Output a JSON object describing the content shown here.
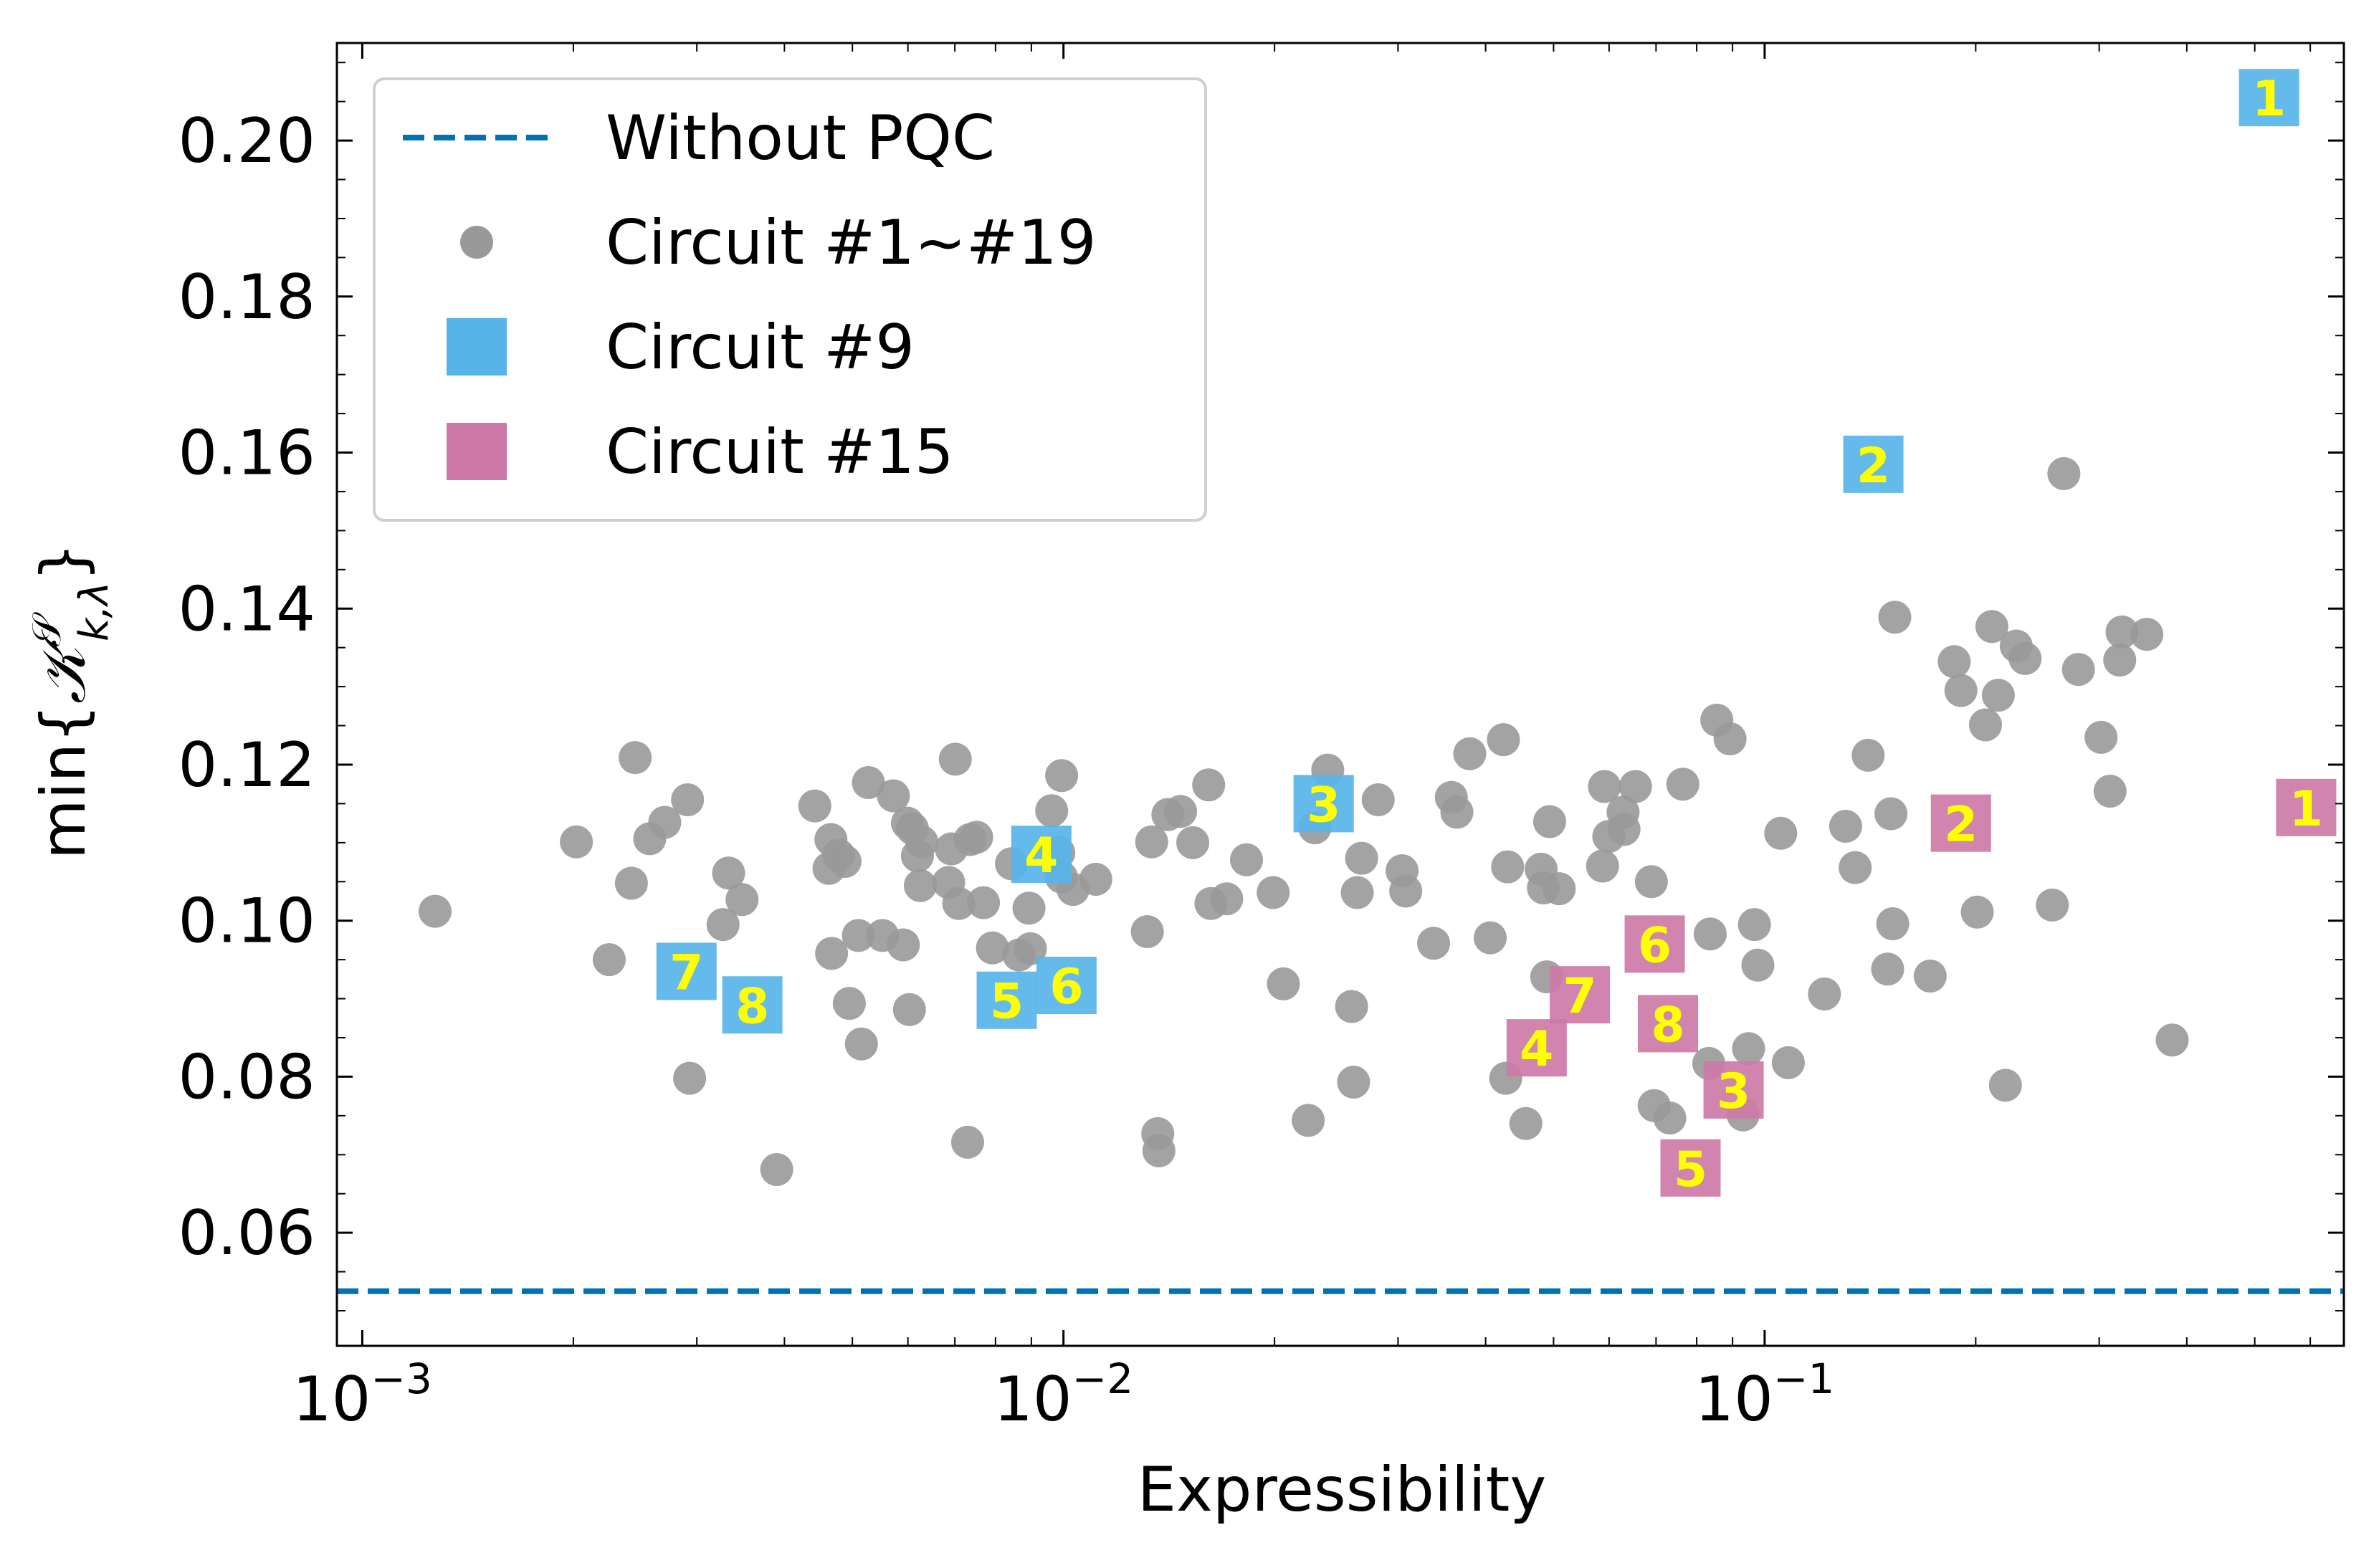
{
  "chart_data": {
    "type": "scatter",
    "xlabel": "Expressibility",
    "ylabel_prefix": "min{",
    "ylabel_symbol": "𝒦",
    "ylabel_sup": "𝒮",
    "ylabel_sub": "k,λ",
    "ylabel_suffix": "}",
    "xscale": "log",
    "xlim": [
      0.00092,
      0.67
    ],
    "ylim": [
      0.0455,
      0.2125
    ],
    "x_ticks": [
      {
        "value": 0.001,
        "base": "10",
        "exp": "−3"
      },
      {
        "value": 0.01,
        "base": "10",
        "exp": "−2"
      },
      {
        "value": 0.1,
        "base": "10",
        "exp": "−1"
      }
    ],
    "y_ticks": [
      {
        "value": 0.06,
        "label": "0.06"
      },
      {
        "value": 0.08,
        "label": "0.08"
      },
      {
        "value": 0.1,
        "label": "0.10"
      },
      {
        "value": 0.12,
        "label": "0.12"
      },
      {
        "value": 0.14,
        "label": "0.14"
      },
      {
        "value": 0.16,
        "label": "0.16"
      },
      {
        "value": 0.18,
        "label": "0.18"
      },
      {
        "value": 0.2,
        "label": "0.20"
      }
    ],
    "legend_position": "top-left",
    "legend": [
      {
        "label": "Without PQC",
        "kind": "dashed-line",
        "color": "#0072B2"
      },
      {
        "label": "Circuit #1~#19",
        "kind": "circle",
        "color": "#999999"
      },
      {
        "label": "Circuit #9",
        "kind": "square",
        "color": "#56B4E9"
      },
      {
        "label": "Circuit #15",
        "kind": "square",
        "color": "#CC79A7"
      }
    ],
    "baseline": {
      "name": "Without PQC",
      "y": 0.0525,
      "color": "#0072B2"
    },
    "series": [
      {
        "name": "Circuit #1~#19",
        "marker": "circle",
        "color": "#999999",
        "points": [
          [
            0.00127,
            0.1012
          ],
          [
            0.00202,
            0.1101
          ],
          [
            0.00225,
            0.095
          ],
          [
            0.00242,
            0.1048
          ],
          [
            0.00245,
            0.1209
          ],
          [
            0.00257,
            0.1105
          ],
          [
            0.0027,
            0.1126
          ],
          [
            0.00291,
            0.1155
          ],
          [
            0.00293,
            0.0798
          ],
          [
            0.00327,
            0.0995
          ],
          [
            0.00333,
            0.1061
          ],
          [
            0.00348,
            0.1027
          ],
          [
            0.0039,
            0.0681
          ],
          [
            0.00442,
            0.1147
          ],
          [
            0.00463,
            0.1067
          ],
          [
            0.00466,
            0.1104
          ],
          [
            0.00467,
            0.0958
          ],
          [
            0.00478,
            0.1084
          ],
          [
            0.00488,
            0.1076
          ],
          [
            0.00495,
            0.0894
          ],
          [
            0.0051,
            0.0981
          ],
          [
            0.00515,
            0.0842
          ],
          [
            0.00527,
            0.1177
          ],
          [
            0.00552,
            0.0981
          ],
          [
            0.00572,
            0.116
          ],
          [
            0.00591,
            0.0969
          ],
          [
            0.00599,
            0.1125
          ],
          [
            0.00603,
            0.0886
          ],
          [
            0.00609,
            0.1118
          ],
          [
            0.00619,
            0.1083
          ],
          [
            0.00625,
            0.1045
          ],
          [
            0.00628,
            0.1101
          ],
          [
            0.00686,
            0.1049
          ],
          [
            0.00692,
            0.1092
          ],
          [
            0.00701,
            0.1207
          ],
          [
            0.00709,
            0.1022
          ],
          [
            0.0073,
            0.0716
          ],
          [
            0.00736,
            0.1104
          ],
          [
            0.00752,
            0.1107
          ],
          [
            0.00769,
            0.1023
          ],
          [
            0.00792,
            0.0965
          ],
          [
            0.00843,
            0.1073
          ],
          [
            0.00864,
            0.0956
          ],
          [
            0.00893,
            0.1016
          ],
          [
            0.00897,
            0.0964
          ],
          [
            0.00962,
            0.1141
          ],
          [
            0.00985,
            0.1087
          ],
          [
            0.00993,
            0.1056
          ],
          [
            0.00994,
            0.1186
          ],
          [
            0.01032,
            0.104
          ],
          [
            0.01112,
            0.1053
          ],
          [
            0.01317,
            0.0986
          ],
          [
            0.01336,
            0.1101
          ],
          [
            0.01363,
            0.0727
          ],
          [
            0.01368,
            0.0705
          ],
          [
            0.01409,
            0.1136
          ],
          [
            0.01469,
            0.114
          ],
          [
            0.01529,
            0.11
          ],
          [
            0.01611,
            0.1174
          ],
          [
            0.01623,
            0.1022
          ],
          [
            0.01709,
            0.1028
          ],
          [
            0.01824,
            0.1078
          ],
          [
            0.01991,
            0.1036
          ],
          [
            0.02059,
            0.0919
          ],
          [
            0.02234,
            0.0744
          ],
          [
            0.02283,
            0.1119
          ],
          [
            0.02382,
            0.1193
          ],
          [
            0.02576,
            0.089
          ],
          [
            0.02593,
            0.0793
          ],
          [
            0.02624,
            0.1036
          ],
          [
            0.02662,
            0.108
          ],
          [
            0.02811,
            0.1155
          ],
          [
            0.0304,
            0.1064
          ],
          [
            0.03077,
            0.1038
          ],
          [
            0.03372,
            0.0971
          ],
          [
            0.03574,
            0.1158
          ],
          [
            0.0364,
            0.1139
          ],
          [
            0.03797,
            0.1214
          ],
          [
            0.04061,
            0.0978
          ],
          [
            0.04241,
            0.1232
          ],
          [
            0.04273,
            0.0798
          ],
          [
            0.043,
            0.1069
          ],
          [
            0.04565,
            0.074
          ],
          [
            0.048,
            0.1066
          ],
          [
            0.04836,
            0.1042
          ],
          [
            0.04889,
            0.0928
          ],
          [
            0.04936,
            0.1127
          ],
          [
            0.05094,
            0.1041
          ],
          [
            0.05872,
            0.107
          ],
          [
            0.0591,
            0.1172
          ],
          [
            0.05994,
            0.1108
          ],
          [
            0.06282,
            0.1139
          ],
          [
            0.06301,
            0.1117
          ],
          [
            0.06543,
            0.1172
          ],
          [
            0.06893,
            0.105
          ],
          [
            0.06957,
            0.0763
          ],
          [
            0.07324,
            0.0747
          ],
          [
            0.07644,
            0.1175
          ],
          [
            0.08324,
            0.0817
          ],
          [
            0.08363,
            0.0983
          ],
          [
            0.08546,
            0.1257
          ],
          [
            0.08926,
            0.1233
          ],
          [
            0.09316,
            0.0751
          ],
          [
            0.09486,
            0.0836
          ],
          [
            0.09671,
            0.0995
          ],
          [
            0.0978,
            0.0943
          ],
          [
            0.10542,
            0.1112
          ],
          [
            0.10807,
            0.0818
          ],
          [
            0.12169,
            0.0906
          ],
          [
            0.13047,
            0.1121
          ],
          [
            0.13462,
            0.1068
          ],
          [
            0.14048,
            0.1212
          ],
          [
            0.14977,
            0.0938
          ],
          [
            0.1514,
            0.1137
          ],
          [
            0.15229,
            0.0996
          ],
          [
            0.15333,
            0.1389
          ],
          [
            0.17222,
            0.0929
          ],
          [
            0.18634,
            0.1332
          ],
          [
            0.19051,
            0.1295
          ],
          [
            0.20101,
            0.1011
          ],
          [
            0.20651,
            0.1251
          ],
          [
            0.21091,
            0.1377
          ],
          [
            0.21538,
            0.1289
          ],
          [
            0.22047,
            0.0789
          ],
          [
            0.22846,
            0.1352
          ],
          [
            0.23521,
            0.1336
          ],
          [
            0.25718,
            0.102
          ],
          [
            0.26715,
            0.1573
          ],
          [
            0.28024,
            0.1322
          ],
          [
            0.30185,
            0.1235
          ],
          [
            0.31089,
            0.1166
          ],
          [
            0.32092,
            0.1334
          ],
          [
            0.32333,
            0.137
          ],
          [
            0.35076,
            0.1367
          ],
          [
            0.38123,
            0.0847
          ]
        ]
      },
      {
        "name": "Circuit #9",
        "marker": "square",
        "color": "#56B4E9",
        "points": [
          [
            0.524,
            0.2055,
            "1"
          ],
          [
            0.1429,
            0.1585,
            "2"
          ],
          [
            0.0235,
            0.115,
            "3"
          ],
          [
            0.0093,
            0.1085,
            "4"
          ],
          [
            0.0083,
            0.0898,
            "5"
          ],
          [
            0.0101,
            0.0917,
            "6"
          ],
          [
            0.0029,
            0.0935,
            "7"
          ],
          [
            0.0036,
            0.0892,
            "8"
          ]
        ]
      },
      {
        "name": "Circuit #15",
        "marker": "square",
        "color": "#CC79A7",
        "points": [
          [
            0.592,
            0.1145,
            "1"
          ],
          [
            0.1905,
            0.1125,
            "2"
          ],
          [
            0.0903,
            0.0783,
            "3"
          ],
          [
            0.0473,
            0.0837,
            "4"
          ],
          [
            0.0784,
            0.0683,
            "5"
          ],
          [
            0.0697,
            0.097,
            "6"
          ],
          [
            0.0545,
            0.0905,
            "7"
          ],
          [
            0.0728,
            0.0868,
            "8"
          ]
        ]
      }
    ]
  }
}
